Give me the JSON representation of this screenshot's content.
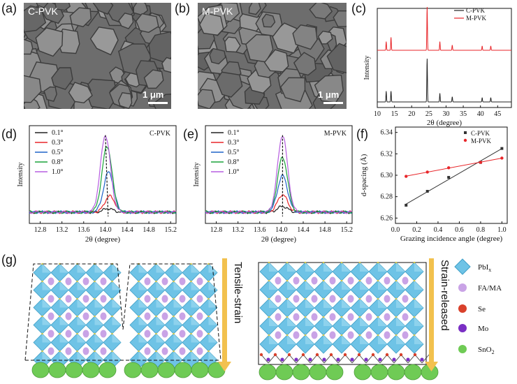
{
  "panels": {
    "a": {
      "letter": "(a)",
      "label": "C-PVK",
      "scale": "1 μm"
    },
    "b": {
      "letter": "(b)",
      "label": "M-PVK",
      "scale": "1 μm"
    },
    "c": {
      "letter": "(c)"
    },
    "d": {
      "letter": "(d)"
    },
    "e": {
      "letter": "(e)"
    },
    "f": {
      "letter": "(f)"
    },
    "g": {
      "letter": "(g)"
    }
  },
  "chart_data": [
    {
      "id": "c",
      "type": "line",
      "xlabel": "2θ (degree)",
      "ylabel": "Intensity",
      "xlim": [
        10,
        49
      ],
      "xticks": [
        "10",
        "15",
        "20",
        "25",
        "30",
        "35",
        "40",
        "45"
      ],
      "series": [
        {
          "name": "C-PVK",
          "color": "#222222",
          "peaks": [
            [
              12.6,
              0.25
            ],
            [
              14.0,
              0.25
            ],
            [
              24.5,
              1.0
            ],
            [
              28.2,
              0.2
            ],
            [
              31.8,
              0.12
            ],
            [
              40.5,
              0.1
            ],
            [
              43.0,
              0.1
            ]
          ]
        },
        {
          "name": "M-PVK",
          "color": "#e8262a",
          "peaks": [
            [
              12.6,
              0.2
            ],
            [
              14.0,
              0.3
            ],
            [
              24.5,
              1.0
            ],
            [
              28.2,
              0.2
            ],
            [
              31.8,
              0.12
            ],
            [
              40.5,
              0.1
            ],
            [
              43.0,
              0.1
            ]
          ]
        }
      ]
    },
    {
      "id": "d",
      "type": "line",
      "title": "C-PVK",
      "xlabel": "2θ (degree)",
      "ylabel": "Intensity",
      "xlim": [
        12.6,
        15.3
      ],
      "xticks": [
        "12.8",
        "13.2",
        "13.6",
        "14.0",
        "14.4",
        "14.8",
        "15.2"
      ],
      "series": [
        {
          "name": "0.1°",
          "color": "#222222",
          "center": 14.05,
          "amp": 0.05
        },
        {
          "name": "0.3°",
          "color": "#e8262a",
          "center": 14.08,
          "amp": 0.22
        },
        {
          "name": "0.5°",
          "color": "#1f63c9",
          "center": 14.06,
          "amp": 0.55
        },
        {
          "name": "0.8°",
          "color": "#1aa33a",
          "center": 14.03,
          "amp": 0.9
        },
        {
          "name": "1.0°",
          "color": "#b75ee0",
          "center": 14.0,
          "amp": 1.05
        }
      ]
    },
    {
      "id": "e",
      "type": "line",
      "title": "M-PVK",
      "xlabel": "2θ (degree)",
      "ylabel": "Intensity",
      "xlim": [
        12.6,
        15.3
      ],
      "xticks": [
        "12.8",
        "13.2",
        "13.6",
        "14.0",
        "14.4",
        "14.8",
        "15.2"
      ],
      "series": [
        {
          "name": "0.1°",
          "color": "#222222",
          "center": 14.02,
          "amp": 0.08
        },
        {
          "name": "0.3°",
          "color": "#e8262a",
          "center": 14.02,
          "amp": 0.24
        },
        {
          "name": "0.5°",
          "color": "#1f63c9",
          "center": 14.02,
          "amp": 0.5
        },
        {
          "name": "0.8°",
          "color": "#1aa33a",
          "center": 14.02,
          "amp": 0.75
        },
        {
          "name": "1.0°",
          "color": "#b75ee0",
          "center": 14.02,
          "amp": 1.05
        }
      ]
    },
    {
      "id": "f",
      "type": "scatter",
      "xlabel": "Grazing incidence angle (degree)",
      "ylabel": "d-spacing (Å)",
      "xlim": [
        0,
        1.05
      ],
      "ylim": [
        6.255,
        6.345
      ],
      "xticks": [
        "0.0",
        "0.2",
        "0.4",
        "0.6",
        "0.8",
        "1.0"
      ],
      "yticks": [
        "6.26",
        "6.28",
        "6.30",
        "6.32",
        "6.34"
      ],
      "series": [
        {
          "name": "C-PVK",
          "color": "#333333",
          "x": [
            0.1,
            0.3,
            0.5,
            0.8,
            1.0
          ],
          "y": [
            6.272,
            6.285,
            6.298,
            6.312,
            6.325
          ]
        },
        {
          "name": "M-PVK",
          "color": "#e8262a",
          "x": [
            0.1,
            0.3,
            0.5,
            0.8,
            1.0
          ],
          "y": [
            6.299,
            6.303,
            6.307,
            6.312,
            6.316
          ]
        }
      ]
    }
  ],
  "schematic": {
    "left_label": "Tensile-strain",
    "right_label": "Strain-released",
    "legend": [
      {
        "name": "PbI",
        "sub": "x",
        "kind": "octahedron",
        "color": "#6ec3e6"
      },
      {
        "name": "FA/MA",
        "kind": "dot",
        "color": "#c9a3e6"
      },
      {
        "name": "Se",
        "kind": "dot",
        "color": "#d9412b"
      },
      {
        "name": "Mo",
        "kind": "dot",
        "color": "#7a2fc4"
      },
      {
        "name": "SnO",
        "sub": "2",
        "kind": "dot",
        "color": "#6fcb55"
      }
    ]
  }
}
